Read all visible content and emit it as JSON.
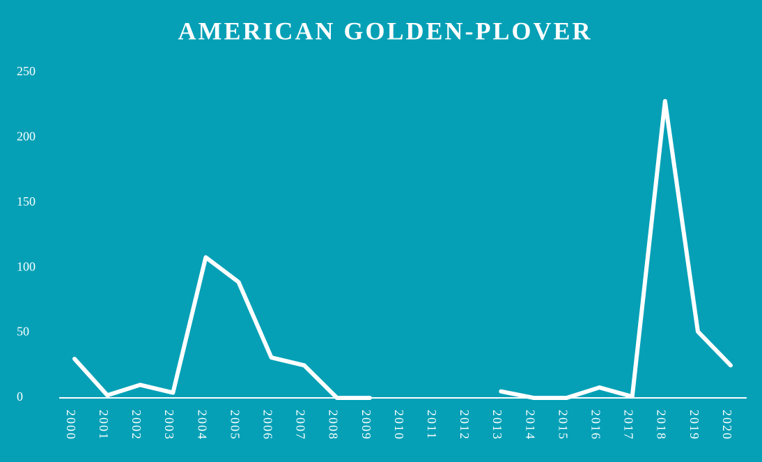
{
  "chart_data": {
    "type": "line",
    "title": "AMERICAN GOLDEN-PLOVER",
    "categories": [
      "2000",
      "2001",
      "2002",
      "2003",
      "2004",
      "2005",
      "2006",
      "2007",
      "2008",
      "2009",
      "2010",
      "2011",
      "2012",
      "2013",
      "2014",
      "2015",
      "2016",
      "2017",
      "2018",
      "2019",
      "2020"
    ],
    "values": [
      30,
      2,
      10,
      4,
      108,
      89,
      31,
      25,
      0,
      0,
      null,
      null,
      null,
      5,
      0,
      0,
      8,
      1,
      228,
      51,
      25
    ],
    "color": "#ffffff",
    "ylim": [
      0,
      250
    ],
    "yticks": [
      0,
      50,
      100,
      150,
      200,
      250
    ],
    "grid": false
  }
}
